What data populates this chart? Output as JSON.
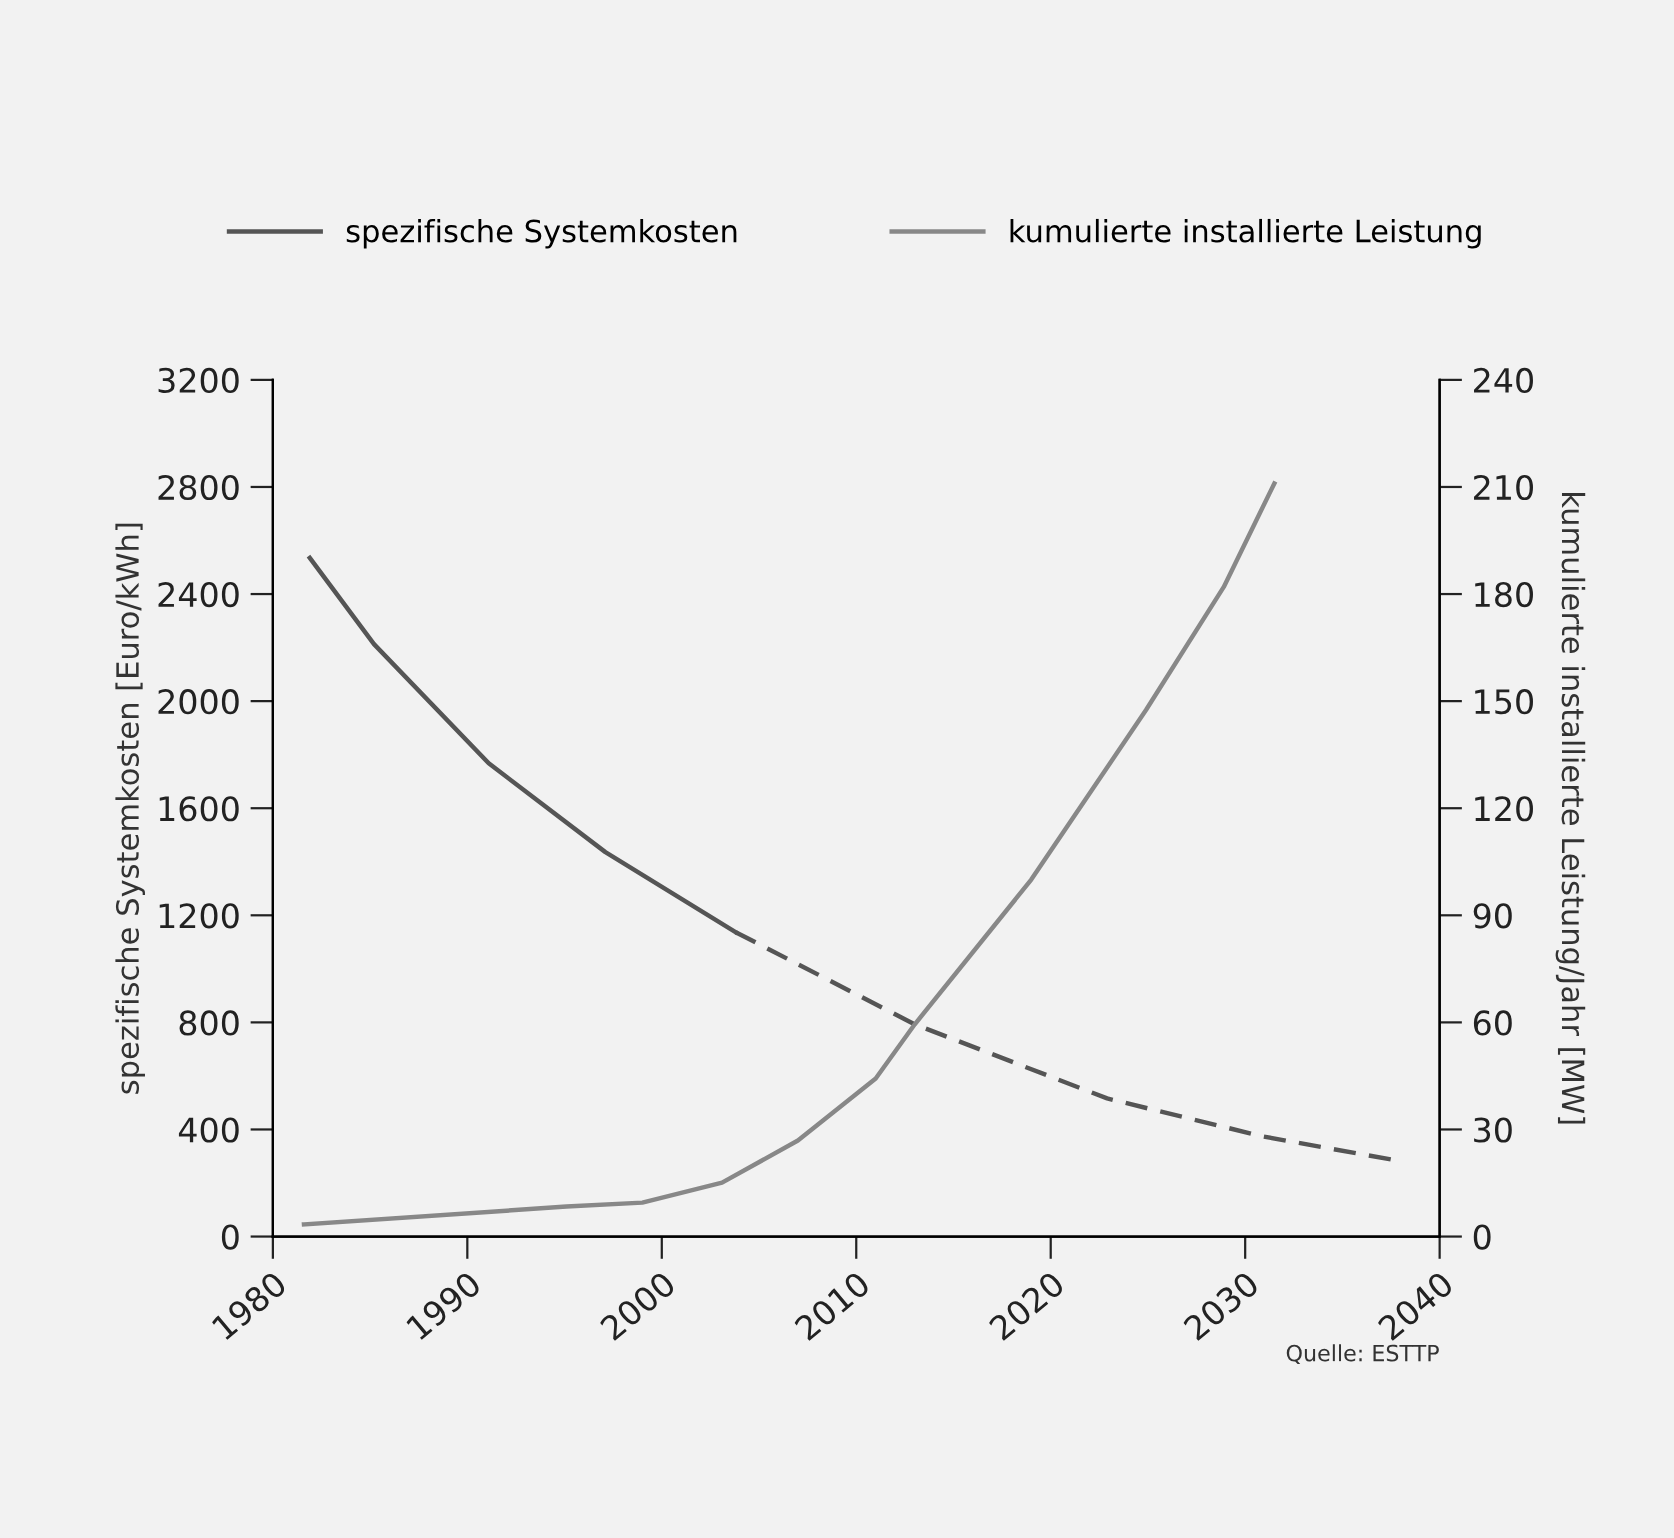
{
  "chart_data": {
    "type": "line",
    "ylabel": "spezifische Systemkosten [Euro/kWh]",
    "y2label": "kumulierte installierte Leistung/Jahr [MW]",
    "xlim": [
      1980,
      2040
    ],
    "xticks": [
      1980,
      1990,
      2000,
      2010,
      2020,
      2030,
      2040
    ],
    "ylim": [
      0,
      3200
    ],
    "yticks": [
      0,
      400,
      800,
      1200,
      1600,
      2000,
      2400,
      2800,
      3200
    ],
    "y2lim": [
      0,
      240
    ],
    "y2ticks": [
      0,
      30,
      60,
      90,
      120,
      150,
      180,
      210,
      240
    ],
    "grid": false,
    "legend": "top",
    "marker": "none",
    "series": [
      {
        "name": "spezifische Systemkosten",
        "color": "#555555",
        "line_style": "solid",
        "x": [
          1981.9,
          1985.2,
          1991.1,
          1997.1,
          2003.8
        ],
        "values": [
          2535,
          2213,
          1768,
          1436,
          1137
        ]
      },
      {
        "color": "#555555",
        "line_style": "dashed",
        "x": [
          2003.8,
          2013,
          2022.9,
          2030.9,
          2037.8
        ],
        "values": [
          1137,
          793,
          516,
          374,
          284
        ]
      },
      {
        "name": "kumulierte installierte Leistung",
        "color": "#888888",
        "line_style": "solid",
        "axis": "y2",
        "x": [
          1981.6,
          1995.1,
          1999.0,
          2003.1,
          2007,
          2011,
          2013,
          2019,
          2024.9,
          2028.9,
          2031.5
        ],
        "values": [
          3.4,
          8.4,
          9.5,
          15.1,
          26.9,
          44.3,
          59.4,
          100,
          147.5,
          182,
          211
        ]
      }
    ],
    "annotations": [
      "Quelle: ESTTP"
    ]
  }
}
